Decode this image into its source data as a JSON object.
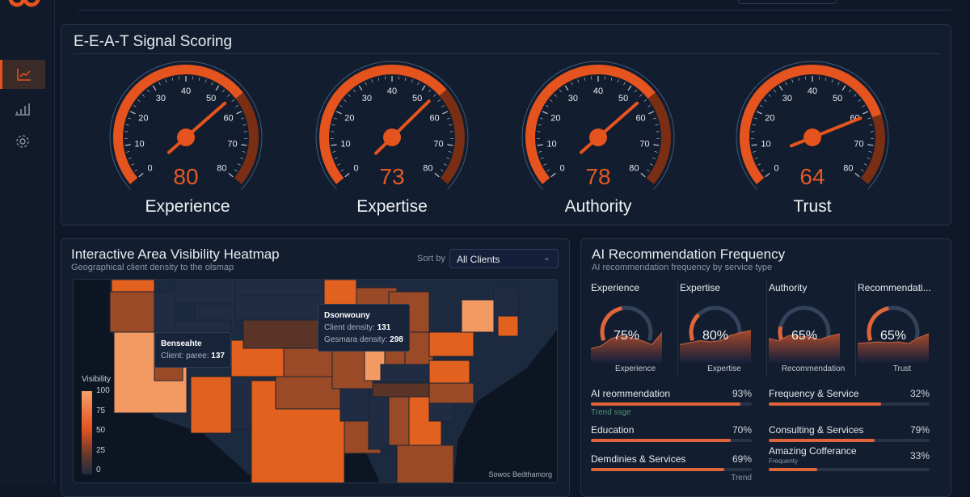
{
  "sidebar": {
    "items": [
      {
        "icon": "line-chart-icon",
        "active": true
      },
      {
        "icon": "bar-chart-icon",
        "active": false
      },
      {
        "icon": "gear-icon",
        "active": false
      }
    ]
  },
  "colors": {
    "accent": "#e5531e",
    "accent_dark": "#7a2e14",
    "panel": "#121d2f",
    "background": "#0f1828"
  },
  "eeat": {
    "title": "E-E-A-T Signal Scoring",
    "scale_labels": [
      "0",
      "10",
      "20",
      "30",
      "40",
      "50",
      "60",
      "70",
      "80"
    ],
    "gauges": [
      {
        "label": "Experience",
        "value": "80",
        "needle": 55
      },
      {
        "label": "Expertise",
        "value": "73",
        "needle": 54
      },
      {
        "label": "Authority",
        "value": "78",
        "needle": 55
      },
      {
        "label": "Trust",
        "value": "64",
        "needle": 61
      }
    ]
  },
  "heatmap": {
    "title": "Interactive Area Visibility Heatmap",
    "subtitle": "Geographical client density to the olsmap",
    "sort_label": "Sort by",
    "sort_value": "All Clients",
    "legend_title": "Visibility",
    "legend_ticks": [
      "100",
      "75",
      "50",
      "25",
      "0"
    ],
    "source": "Sowoc Bedthamorg",
    "tooltip1": {
      "title": "Dsonwouny",
      "line1_label": "Client density:",
      "line1_value": "131",
      "line2_label": "Gesmara density:",
      "line2_value": "298"
    },
    "tooltip2": {
      "title": "Benseahte",
      "line1_label": "Client: paree:",
      "line1_value": "137"
    }
  },
  "ai": {
    "title": "AI Recommendation Frequency",
    "subtitle": "AI recommendation frequency by service type",
    "cards": [
      {
        "title": "Experience",
        "value": "75%",
        "fill": 0.45,
        "footer": "Experience",
        "trend": [
          0.35,
          0.42,
          0.6,
          0.68,
          0.62,
          0.55,
          0.45,
          0.75
        ]
      },
      {
        "title": "Expertise",
        "value": "80%",
        "fill": 0.3,
        "footer": "Expertise",
        "trend": [
          0.45,
          0.5,
          0.55,
          0.52,
          0.55,
          0.68,
          0.75,
          0.8
        ]
      },
      {
        "title": "Authority",
        "value": "65%",
        "fill": 0.15,
        "footer": "Recommendation",
        "trend": [
          0.6,
          0.55,
          0.68,
          0.66,
          0.64,
          0.58,
          0.66,
          0.72
        ]
      },
      {
        "title": "Recommendati...",
        "value": "65%",
        "fill": 0.45,
        "footer": "Trust",
        "trend": [
          0.48,
          0.5,
          0.52,
          0.5,
          0.52,
          0.48,
          0.62,
          0.72
        ]
      }
    ],
    "rows_left": [
      {
        "label": "AI reommendation",
        "value": "93%",
        "fill": 0.93,
        "note": "Trend ssge"
      },
      {
        "label": "Education",
        "value": "70%",
        "fill": 0.87
      },
      {
        "label": "Demdinies & Services",
        "value": "69%",
        "fill": 0.83,
        "note": "Trend"
      }
    ],
    "rows_right": [
      {
        "label": "Frequency & Service",
        "value": "32%",
        "fill": 0.7
      },
      {
        "label": "Consulting & Services",
        "value": "79%",
        "fill": 0.66
      },
      {
        "label": "Amazing Cofferance",
        "sub": "Frequenty",
        "value": "33%",
        "fill": 0.3
      }
    ]
  }
}
